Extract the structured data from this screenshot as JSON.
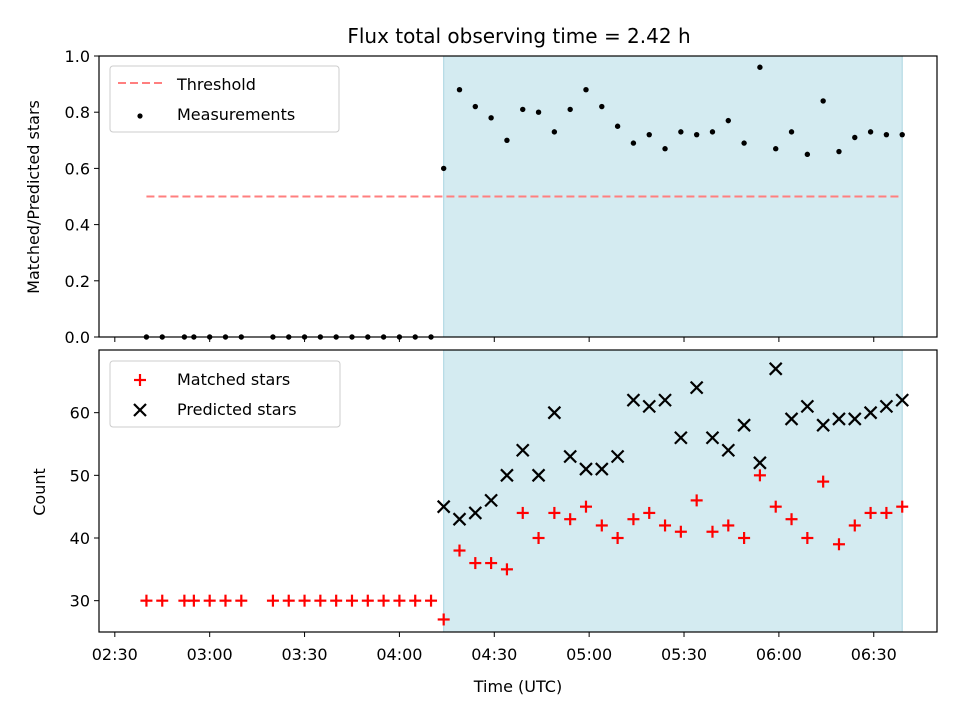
{
  "chart_data": {
    "title": "Flux total observing time = 2.42 h",
    "x": [
      "02:40",
      "02:45",
      "02:52",
      "02:55",
      "03:00",
      "03:05",
      "03:10",
      "03:20",
      "03:25",
      "03:30",
      "03:35",
      "03:40",
      "03:45",
      "03:50",
      "03:55",
      "04:00",
      "04:05",
      "04:10",
      "04:14",
      "04:19",
      "04:24",
      "04:29",
      "04:34",
      "04:39",
      "04:44",
      "04:49",
      "04:54",
      "04:59",
      "05:04",
      "05:09",
      "05:14",
      "05:19",
      "05:24",
      "05:29",
      "05:34",
      "05:39",
      "05:44",
      "05:49",
      "05:54",
      "05:59",
      "06:04",
      "06:09",
      "06:14",
      "06:19",
      "06:24",
      "06:29",
      "06:34",
      "06:39"
    ],
    "xlabel": "Time (UTC)",
    "xticks": [
      "02:30",
      "03:00",
      "03:30",
      "04:00",
      "04:30",
      "05:00",
      "05:30",
      "06:00",
      "06:30"
    ],
    "x_range": [
      "02:25",
      "06:50"
    ],
    "shaded_region": [
      "04:14",
      "06:39"
    ],
    "shade_color": "#d4ebf1",
    "top": {
      "type": "scatter",
      "ylabel": "Matched/Predicted stars",
      "ylim": [
        0,
        1.0
      ],
      "yticks": [
        "0.0",
        "0.2",
        "0.4",
        "0.6",
        "0.8",
        "1.0"
      ],
      "threshold": {
        "name": "Threshold",
        "value": 0.5,
        "x_range": [
          "02:40",
          "06:38"
        ],
        "color": "#ff7f7f"
      },
      "series": [
        {
          "name": "Measurements",
          "color": "#000000",
          "values": [
            0,
            0,
            0,
            0,
            0,
            0,
            0,
            0,
            0,
            0,
            0,
            0,
            0,
            0,
            0,
            0,
            0,
            0,
            0.6,
            0.88,
            0.82,
            0.78,
            0.7,
            0.81,
            0.8,
            0.73,
            0.81,
            0.88,
            0.82,
            0.75,
            0.69,
            0.72,
            0.67,
            0.73,
            0.72,
            0.73,
            0.77,
            0.69,
            0.96,
            0.67,
            0.73,
            0.65,
            0.84,
            0.66,
            0.71,
            0.73,
            0.72,
            0.72
          ]
        }
      ],
      "legend_position": "upper-left"
    },
    "bottom": {
      "type": "scatter",
      "ylabel": "Count",
      "ylim": [
        25,
        70
      ],
      "yticks": [
        "30",
        "40",
        "50",
        "60"
      ],
      "series": [
        {
          "name": "Matched stars",
          "color": "#ff0000",
          "marker": "plus",
          "values": [
            30,
            30,
            30,
            30,
            30,
            30,
            30,
            30,
            30,
            30,
            30,
            30,
            30,
            30,
            30,
            30,
            30,
            30,
            27,
            38,
            36,
            36,
            35,
            44,
            40,
            44,
            43,
            45,
            42,
            40,
            43,
            44,
            42,
            41,
            46,
            41,
            42,
            40,
            50,
            45,
            43,
            40,
            49,
            39,
            42,
            44,
            44,
            45
          ]
        },
        {
          "name": "Predicted stars",
          "color": "#000000",
          "marker": "x",
          "values": [
            null,
            null,
            null,
            null,
            null,
            null,
            null,
            null,
            null,
            null,
            null,
            null,
            null,
            null,
            null,
            null,
            null,
            null,
            45,
            43,
            44,
            46,
            50,
            54,
            50,
            60,
            53,
            51,
            51,
            53,
            62,
            61,
            62,
            56,
            64,
            56,
            54,
            58,
            52,
            67,
            59,
            61,
            58,
            59,
            59,
            60,
            61,
            62
          ]
        }
      ],
      "legend_position": "upper-left"
    }
  }
}
